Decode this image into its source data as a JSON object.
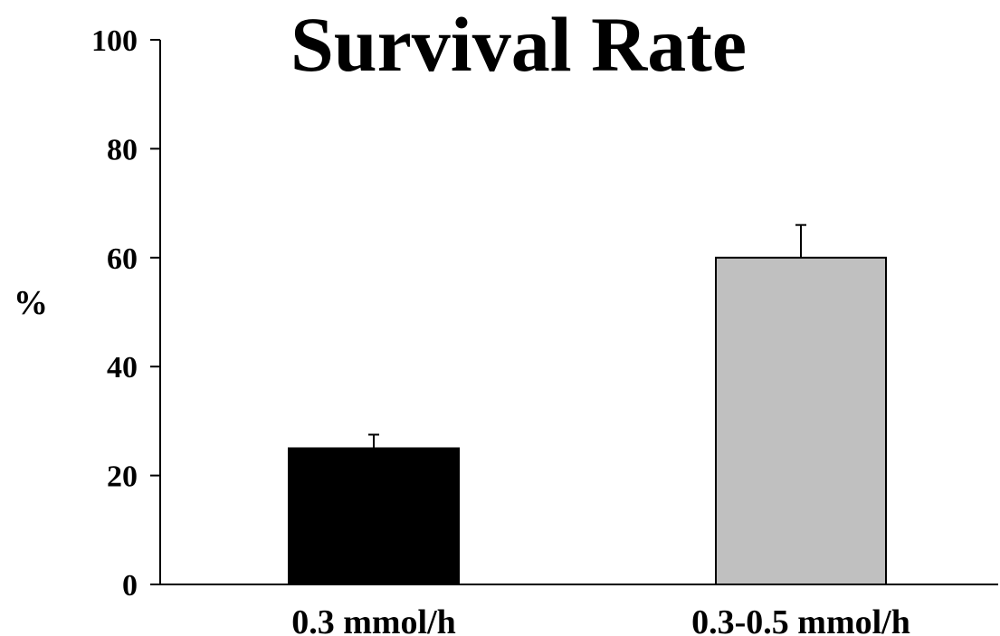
{
  "chart_data": {
    "type": "bar",
    "title": "Survival Rate",
    "xlabel": "",
    "ylabel": "%",
    "ylim": [
      0,
      100
    ],
    "yticks": [
      0,
      20,
      40,
      60,
      80,
      100
    ],
    "categories": [
      "0.3 mmol/h",
      "0.3-0.5 mmol/h"
    ],
    "series": [
      {
        "values": [
          25,
          60
        ],
        "error_upper": [
          2.5,
          6
        ],
        "colors": [
          "#000000",
          "#c0c0c0"
        ]
      }
    ],
    "grid": false,
    "legend": "none"
  }
}
